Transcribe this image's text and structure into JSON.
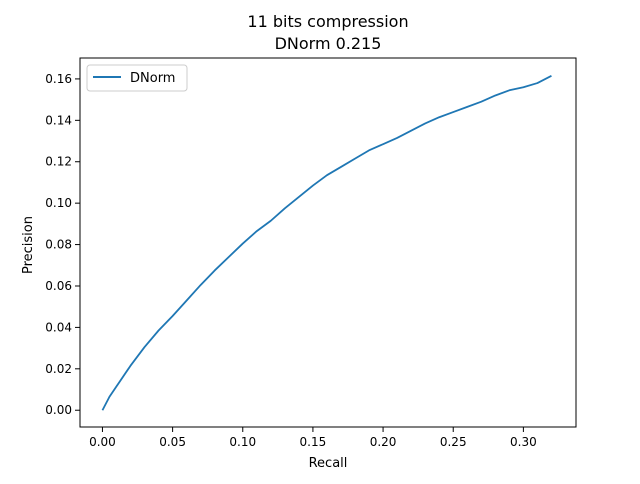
{
  "chart_data": {
    "type": "line",
    "title_line1": "11 bits compression",
    "title_line2": "DNorm 0.215",
    "xlabel": "Recall",
    "ylabel": "Precision",
    "xlim": [
      -0.016,
      0.3375
    ],
    "ylim": [
      -0.0081,
      0.1701
    ],
    "x_ticks": [
      0.0,
      0.05,
      0.1,
      0.15,
      0.2,
      0.25,
      0.3
    ],
    "x_tick_labels": [
      "0.00",
      "0.05",
      "0.10",
      "0.15",
      "0.20",
      "0.25",
      "0.30"
    ],
    "y_ticks": [
      0.0,
      0.02,
      0.04,
      0.06,
      0.08,
      0.1,
      0.12,
      0.14,
      0.16
    ],
    "y_tick_labels": [
      "0.00",
      "0.02",
      "0.04",
      "0.06",
      "0.08",
      "0.10",
      "0.12",
      "0.14",
      "0.16"
    ],
    "grid": false,
    "legend_position": "top-left",
    "series": [
      {
        "name": "DNorm",
        "color": "#1f77b4",
        "x": [
          0.0,
          0.005,
          0.01,
          0.02,
          0.03,
          0.04,
          0.05,
          0.06,
          0.07,
          0.08,
          0.09,
          0.1,
          0.11,
          0.12,
          0.13,
          0.14,
          0.15,
          0.16,
          0.17,
          0.18,
          0.19,
          0.2,
          0.21,
          0.22,
          0.23,
          0.24,
          0.25,
          0.26,
          0.27,
          0.28,
          0.29,
          0.3,
          0.31,
          0.32
        ],
        "y": [
          0.0,
          0.0065,
          0.0115,
          0.0215,
          0.0305,
          0.0385,
          0.0455,
          0.053,
          0.0605,
          0.0675,
          0.074,
          0.0805,
          0.0865,
          0.0915,
          0.0975,
          0.103,
          0.1085,
          0.1135,
          0.1175,
          0.1215,
          0.1255,
          0.1285,
          0.1315,
          0.135,
          0.1385,
          0.1415,
          0.144,
          0.1465,
          0.149,
          0.152,
          0.1545,
          0.156,
          0.158,
          0.1615
        ]
      }
    ]
  }
}
